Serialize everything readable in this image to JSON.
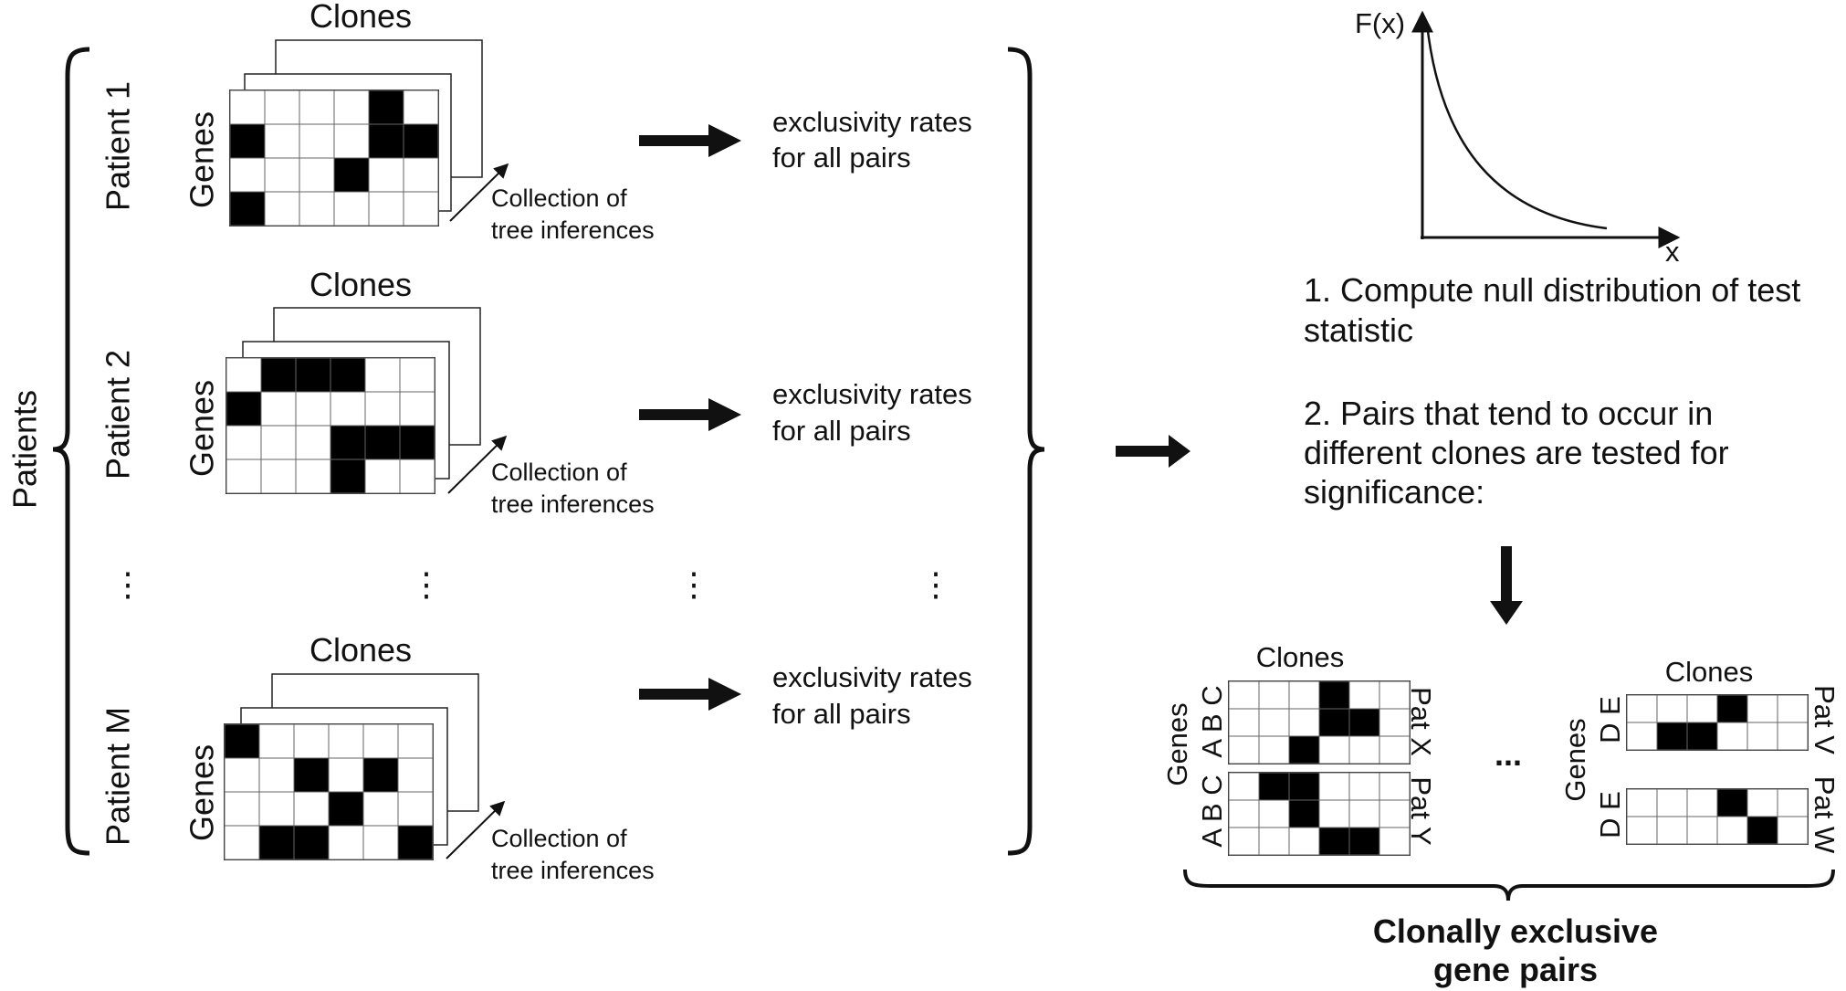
{
  "left": {
    "group_label": "Patients",
    "clones_label": "Clones",
    "genes_label": "Genes",
    "collection_line1": "Collection of",
    "collection_line2": "tree inferences",
    "rates_line1": "exclusivity rates",
    "rates_line2": "for all pairs",
    "ellipsis": "⋮",
    "patients": [
      {
        "label": "Patient 1"
      },
      {
        "label": "Patient 2"
      },
      {
        "label": "Patient M"
      }
    ]
  },
  "right": {
    "axis_y": "F(x)",
    "axis_x": "x",
    "step1_line1": "1. Compute null distribution of test",
    "step1_line2": "statistic",
    "step2_line1": "2. Pairs that tend to occur in",
    "step2_line2": "different clones are tested for",
    "step2_line3": "significance:",
    "clones_label": "Clones",
    "genes_label": "Genes",
    "group1_genes": [
      "A B C",
      "A B C"
    ],
    "group1_pats": [
      "Pat X",
      "Pat Y"
    ],
    "group2_genes": [
      "D E",
      "D E"
    ],
    "group2_pats": [
      "Pat V",
      "Pat W"
    ],
    "ellipsis": "...",
    "result_line1": "Clonally exclusive",
    "result_line2": "gene pairs"
  },
  "matrices": {
    "p1": [
      [
        0,
        0,
        0,
        0,
        1,
        0
      ],
      [
        1,
        0,
        0,
        0,
        1,
        1
      ],
      [
        0,
        0,
        0,
        1,
        0,
        0
      ],
      [
        1,
        0,
        0,
        0,
        0,
        0
      ]
    ],
    "p2": [
      [
        0,
        1,
        1,
        1,
        0,
        0
      ],
      [
        1,
        0,
        0,
        0,
        0,
        0
      ],
      [
        0,
        0,
        0,
        1,
        1,
        1
      ],
      [
        0,
        0,
        0,
        1,
        0,
        0
      ]
    ],
    "pm": [
      [
        1,
        0,
        0,
        0,
        0,
        0
      ],
      [
        0,
        0,
        1,
        0,
        1,
        0
      ],
      [
        0,
        0,
        0,
        1,
        0,
        0
      ],
      [
        0,
        1,
        1,
        0,
        0,
        1
      ]
    ],
    "patX": [
      [
        0,
        0,
        0,
        1,
        0,
        0
      ],
      [
        0,
        0,
        0,
        1,
        1,
        0
      ],
      [
        0,
        0,
        1,
        0,
        0,
        0
      ]
    ],
    "patY": [
      [
        0,
        1,
        1,
        0,
        0,
        0
      ],
      [
        0,
        0,
        1,
        0,
        0,
        0
      ],
      [
        0,
        0,
        0,
        1,
        1,
        0
      ]
    ],
    "patV": [
      [
        0,
        0,
        0,
        1,
        0,
        0
      ],
      [
        0,
        1,
        1,
        0,
        0,
        0
      ]
    ],
    "patW": [
      [
        0,
        0,
        0,
        1,
        0,
        0
      ],
      [
        0,
        0,
        0,
        0,
        1,
        0
      ]
    ]
  }
}
